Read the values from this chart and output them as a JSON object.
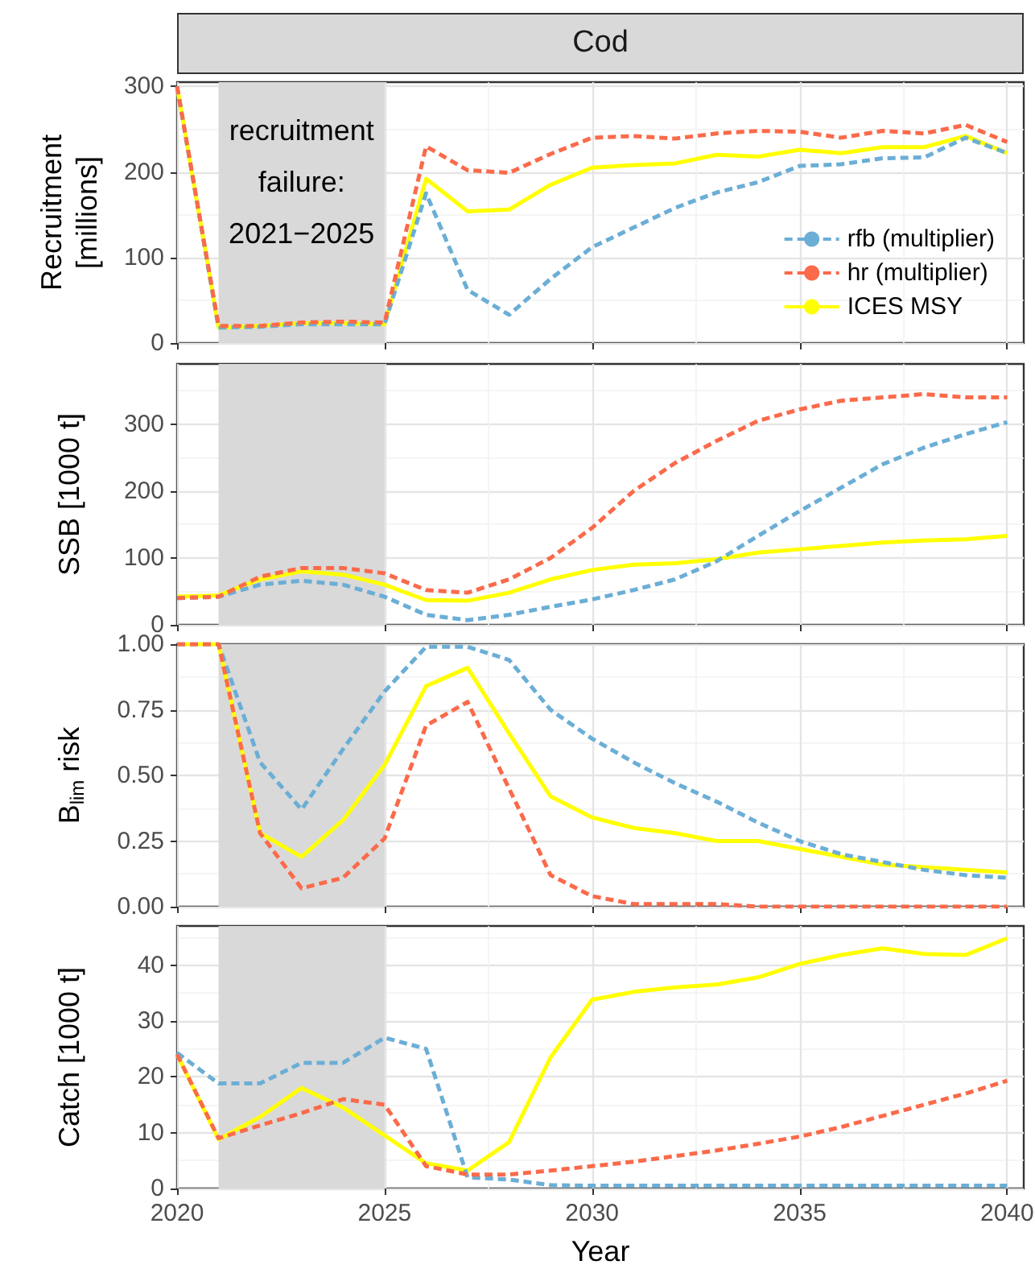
{
  "chart_data": [
    {
      "type": "line",
      "title": "Cod",
      "ylabel": "Recruitment\n[millions]",
      "x": [
        2020,
        2021,
        2022,
        2023,
        2024,
        2025,
        2026,
        2027,
        2028,
        2029,
        2030,
        2031,
        2032,
        2033,
        2034,
        2035,
        2036,
        2037,
        2038,
        2039,
        2040
      ],
      "series": [
        {
          "name": "rfb (multiplier)",
          "color": "#6baed6",
          "line_style": "dashed",
          "values": [
            300,
            18,
            19,
            22,
            22,
            22,
            175,
            62,
            33,
            75,
            112,
            135,
            158,
            176,
            188,
            207,
            209,
            216,
            217,
            240,
            222
          ]
        },
        {
          "name": "hr (multiplier)",
          "color": "#fb6a4a",
          "line_style": "dashed",
          "values": [
            300,
            20,
            20,
            24,
            25,
            24,
            230,
            202,
            199,
            221,
            240,
            242,
            239,
            245,
            248,
            247,
            240,
            248,
            245,
            255,
            235
          ]
        },
        {
          "name": "ICES MSY",
          "color": "#ffff00",
          "line_style": "solid",
          "values": [
            300,
            18,
            20,
            23,
            23,
            22,
            192,
            154,
            156,
            185,
            205,
            208,
            210,
            220,
            218,
            226,
            222,
            229,
            229,
            242,
            222
          ]
        }
      ],
      "xlim": [
        2020,
        2040.4
      ],
      "xticks": [
        2020,
        2025,
        2030,
        2035,
        2040
      ],
      "ylim": [
        0,
        305
      ],
      "yticks": [
        0,
        100,
        200,
        300
      ],
      "bands": [
        {
          "axis": "x",
          "from": 2021,
          "to": 2025,
          "label": "recruitment\nfailure:\n2021−2025",
          "color": "#d9d9d9"
        }
      ],
      "grid": true,
      "legend": "bottom right",
      "marker": "none",
      "tick_labels": "y"
    },
    {
      "type": "line",
      "ylabel": "SSB [1000 t]",
      "x": [
        2020,
        2021,
        2022,
        2023,
        2024,
        2025,
        2026,
        2027,
        2028,
        2029,
        2030,
        2031,
        2032,
        2033,
        2034,
        2035,
        2036,
        2037,
        2038,
        2039,
        2040
      ],
      "series": [
        {
          "color": "#6baed6",
          "line_style": "dashed",
          "values": [
            40,
            42,
            60,
            66,
            60,
            42,
            15,
            7,
            15,
            27,
            38,
            52,
            68,
            95,
            133,
            170,
            205,
            240,
            265,
            285,
            303
          ]
        },
        {
          "color": "#fb6a4a",
          "line_style": "dashed",
          "values": [
            40,
            42,
            72,
            85,
            85,
            77,
            52,
            48,
            68,
            100,
            145,
            200,
            242,
            275,
            305,
            322,
            335,
            340,
            345,
            340,
            340
          ]
        },
        {
          "color": "#ffff00",
          "line_style": "solid",
          "values": [
            42,
            44,
            68,
            80,
            75,
            60,
            37,
            36,
            48,
            68,
            82,
            90,
            92,
            98,
            108,
            113,
            118,
            123,
            126,
            128,
            133
          ]
        }
      ],
      "xlim": [
        2020,
        2040.4
      ],
      "xticks": [
        2020,
        2025,
        2030,
        2035,
        2040
      ],
      "ylim": [
        0,
        390
      ],
      "yticks": [
        0,
        100,
        200,
        300
      ],
      "bands": [
        {
          "axis": "x",
          "from": 2021,
          "to": 2025,
          "color": "#d9d9d9"
        }
      ],
      "grid": true,
      "marker": "none",
      "tick_labels": "y"
    },
    {
      "type": "line",
      "ylabel": "B$_{lim}$ risk",
      "x": [
        2020,
        2021,
        2022,
        2023,
        2024,
        2025,
        2026,
        2027,
        2028,
        2029,
        2030,
        2031,
        2032,
        2033,
        2034,
        2035,
        2036,
        2037,
        2038,
        2039,
        2040
      ],
      "series": [
        {
          "color": "#6baed6",
          "line_style": "dashed",
          "values": [
            1,
            1,
            0.55,
            0.37,
            0.6,
            0.82,
            0.99,
            0.99,
            0.94,
            0.75,
            0.64,
            0.55,
            0.47,
            0.4,
            0.32,
            0.25,
            0.2,
            0.17,
            0.14,
            0.12,
            0.11
          ]
        },
        {
          "color": "#fb6a4a",
          "line_style": "dashed",
          "values": [
            1,
            1,
            0.28,
            0.07,
            0.11,
            0.26,
            0.69,
            0.78,
            0.45,
            0.12,
            0.04,
            0.01,
            0.01,
            0.01,
            0,
            0,
            0,
            0,
            0,
            0,
            0
          ]
        },
        {
          "color": "#ffff00",
          "line_style": "solid",
          "values": [
            1,
            1,
            0.28,
            0.19,
            0.33,
            0.54,
            0.84,
            0.91,
            0.66,
            0.42,
            0.34,
            0.3,
            0.28,
            0.25,
            0.25,
            0.22,
            0.19,
            0.16,
            0.15,
            0.14,
            0.13
          ]
        }
      ],
      "xlim": [
        2020,
        2040.4
      ],
      "xticks": [
        2020,
        2025,
        2030,
        2035,
        2040
      ],
      "ylim": [
        0,
        1
      ],
      "yticks": [
        {
          "value": 0,
          "label": "0.00"
        },
        {
          "value": 0.25,
          "label": "0.25"
        },
        {
          "value": 0.5,
          "label": "0.50"
        },
        {
          "value": 0.75,
          "label": "0.75"
        },
        {
          "value": 1,
          "label": "1.00"
        }
      ],
      "bands": [
        {
          "axis": "x",
          "from": 2021,
          "to": 2025,
          "color": "#d9d9d9"
        }
      ],
      "grid": true,
      "marker": "none",
      "tick_labels": "y"
    },
    {
      "type": "line",
      "xlabel": "Year",
      "ylabel": "Catch [1000 t]",
      "x": [
        2020,
        2021,
        2022,
        2023,
        2024,
        2025,
        2026,
        2027,
        2028,
        2029,
        2030,
        2031,
        2032,
        2033,
        2034,
        2035,
        2036,
        2037,
        2038,
        2039,
        2040
      ],
      "series": [
        {
          "color": "#6baed6",
          "line_style": "dashed",
          "values": [
            24.3,
            18.8,
            18.8,
            22.5,
            22.5,
            27,
            25,
            2,
            1.6,
            0.6,
            0.5,
            0.5,
            0.5,
            0.5,
            0.5,
            0.5,
            0.5,
            0.5,
            0.5,
            0.5,
            0.5
          ]
        },
        {
          "color": "#fb6a4a",
          "line_style": "dashed",
          "values": [
            24,
            9,
            11.3,
            13.5,
            16,
            15,
            4,
            2.5,
            2.5,
            3.2,
            4,
            4.8,
            5.8,
            6.8,
            8,
            9.3,
            11,
            13,
            15,
            17,
            19.3
          ]
        },
        {
          "color": "#ffff00",
          "line_style": "solid",
          "values": [
            24,
            8.8,
            12.8,
            18,
            14.5,
            9.5,
            4.5,
            3.2,
            8.3,
            23.5,
            33.8,
            35.2,
            36,
            36.5,
            37.8,
            40.2,
            41.8,
            43,
            42,
            41.8,
            44.8
          ]
        }
      ],
      "xlim": [
        2020,
        2040.4
      ],
      "xticks": [
        2020,
        2025,
        2030,
        2035,
        2040
      ],
      "ylim": [
        0,
        47
      ],
      "yticks": [
        0,
        10,
        20,
        30,
        40
      ],
      "bands": [
        {
          "axis": "x",
          "from": 2021,
          "to": 2025,
          "color": "#d9d9d9"
        }
      ],
      "grid": true,
      "marker": "none"
    }
  ]
}
